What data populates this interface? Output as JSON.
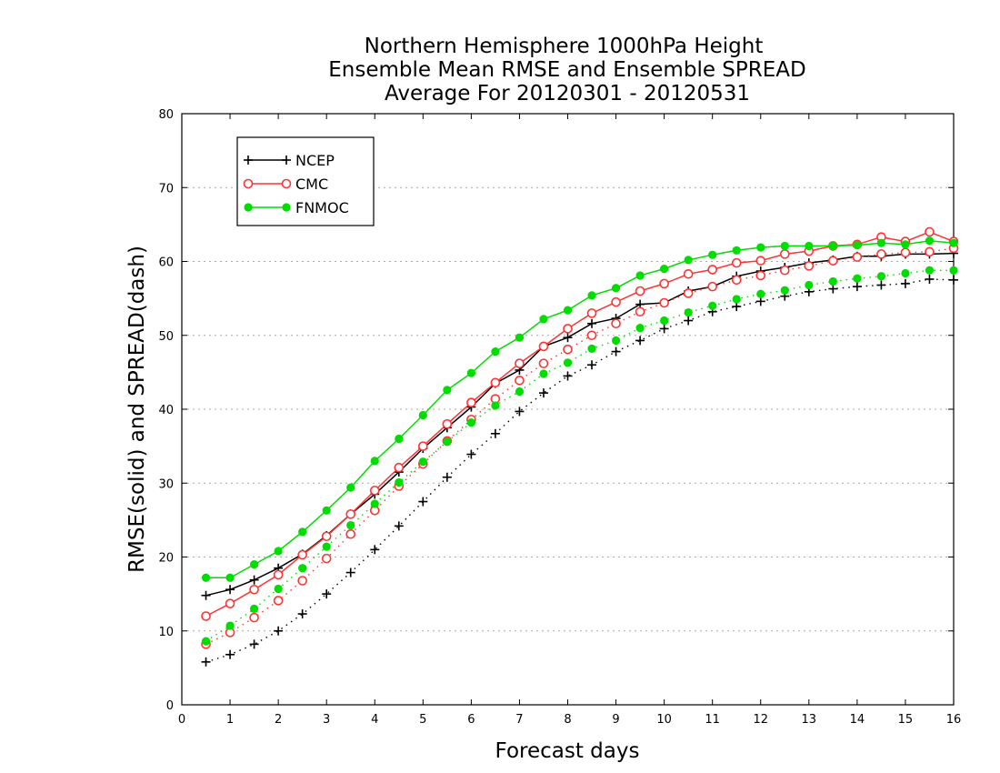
{
  "chart_data": {
    "type": "line",
    "title": [
      "Northern Hemisphere 1000hPa Height",
      "Ensemble Mean RMSE and Ensemble SPREAD",
      "Average For 20120301 - 20120531"
    ],
    "xlabel": "Forecast days",
    "ylabel": "RMSE(solid) and SPREAD(dash)",
    "xlim": [
      0,
      16
    ],
    "ylim": [
      0,
      80
    ],
    "x_ticks": [
      "0",
      "1",
      "2",
      "3",
      "4",
      "5",
      "6",
      "7",
      "8",
      "9",
      "10",
      "11",
      "12",
      "13",
      "14",
      "15",
      "16"
    ],
    "y_ticks": [
      "0",
      "10",
      "20",
      "30",
      "40",
      "50",
      "60",
      "70",
      "80"
    ],
    "grid": "horizontal dotted",
    "legend_position": "top-left",
    "x": [
      0.5,
      1,
      1.5,
      2,
      2.5,
      3,
      3.5,
      4,
      4.5,
      5,
      5.5,
      6,
      6.5,
      7,
      7.5,
      8,
      8.5,
      9,
      9.5,
      10,
      10.5,
      11,
      11.5,
      12,
      12.5,
      13,
      13.5,
      14,
      14.5,
      15,
      15.5,
      16
    ],
    "series": [
      {
        "name": "NCEP",
        "color": "#000000",
        "marker": "plus",
        "rmse": [
          14.8,
          15.6,
          16.9,
          18.5,
          20.4,
          22.9,
          25.8,
          28.5,
          31.5,
          34.7,
          37.5,
          40.3,
          43.5,
          45.3,
          48.5,
          49.7,
          51.6,
          52.3,
          54.2,
          54.4,
          56.0,
          56.6,
          58.0,
          58.7,
          59.2,
          59.8,
          60.2,
          60.7,
          60.7,
          61.0,
          61.0,
          61.1
        ],
        "spread": [
          5.8,
          6.8,
          8.2,
          10.0,
          12.3,
          15.0,
          17.9,
          21.0,
          24.2,
          27.5,
          30.8,
          33.9,
          36.7,
          39.7,
          42.2,
          44.5,
          46.0,
          47.8,
          49.3,
          50.9,
          52.0,
          53.2,
          53.9,
          54.6,
          55.3,
          55.9,
          56.3,
          56.6,
          56.8,
          57.0,
          57.6,
          57.5
        ]
      },
      {
        "name": "CMC",
        "color": "#ff3333",
        "marker": "open-circle",
        "rmse": [
          12.0,
          13.7,
          15.6,
          17.6,
          20.3,
          22.8,
          25.8,
          29.0,
          32.1,
          35.0,
          38.0,
          40.9,
          43.6,
          46.2,
          48.5,
          50.9,
          53.0,
          54.5,
          56.0,
          57.0,
          58.3,
          58.9,
          59.8,
          60.1,
          61.0,
          61.4,
          62.1,
          62.3,
          63.3,
          62.7,
          64.0,
          62.7
        ],
        "spread": [
          8.2,
          9.8,
          11.8,
          14.1,
          16.8,
          19.8,
          23.1,
          26.3,
          29.6,
          32.6,
          35.7,
          38.6,
          41.4,
          43.9,
          46.2,
          48.1,
          50.0,
          51.6,
          53.2,
          54.4,
          55.7,
          56.6,
          57.5,
          58.1,
          58.8,
          59.4,
          60.1,
          60.6,
          61.0,
          61.2,
          61.3,
          61.8
        ]
      },
      {
        "name": "FNMOC",
        "color": "#00dd00",
        "marker": "filled-circle",
        "rmse": [
          17.2,
          17.2,
          19.0,
          20.8,
          23.4,
          26.3,
          29.4,
          33.0,
          36.0,
          39.2,
          42.6,
          44.9,
          47.8,
          49.7,
          52.2,
          53.4,
          55.4,
          56.4,
          58.1,
          59.0,
          60.2,
          60.9,
          61.5,
          61.9,
          62.1,
          62.1,
          62.1,
          62.2,
          62.5,
          62.3,
          62.8,
          62.5
        ],
        "spread": [
          8.6,
          10.7,
          13.0,
          15.7,
          18.5,
          21.4,
          24.3,
          27.2,
          30.1,
          32.9,
          35.6,
          38.2,
          40.5,
          42.4,
          44.8,
          46.3,
          48.2,
          49.3,
          51.0,
          52.0,
          53.1,
          54.0,
          54.9,
          55.6,
          56.1,
          56.8,
          57.3,
          57.7,
          58.0,
          58.4,
          58.8,
          58.8
        ]
      }
    ]
  }
}
